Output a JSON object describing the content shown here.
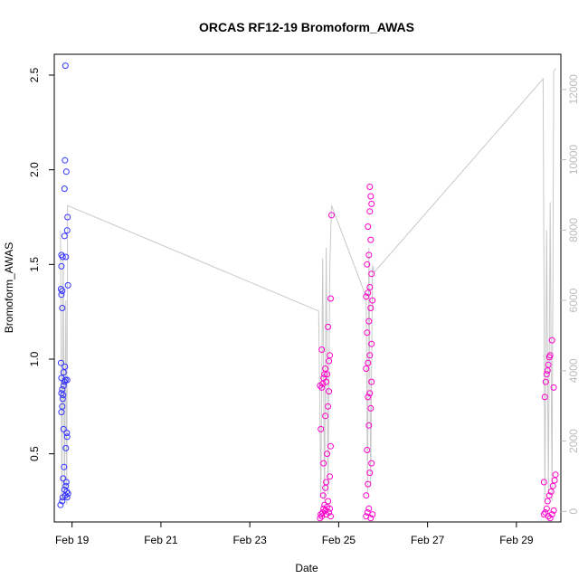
{
  "chart_data": {
    "type": "scatter",
    "title": "ORCAS RF12-19 Bromoform_AWAS",
    "xlabel": "Date",
    "ylabel": "Bromoform_AWAS",
    "x_ticks": [
      "Feb 19",
      "Feb 21",
      "Feb 23",
      "Feb 25",
      "Feb 27",
      "Feb 29"
    ],
    "y_ticks": [
      "0.5",
      "1.0",
      "1.5",
      "2.0",
      "2.5"
    ],
    "y2_ticks": [
      "0",
      "2000",
      "4000",
      "6000",
      "8000",
      "10000",
      "12000"
    ],
    "xlim_days": [
      18.6,
      30.0
    ],
    "ylim": [
      0.14,
      2.61
    ],
    "y2lim": [
      -300,
      13000
    ],
    "grid": false,
    "colors": {
      "early": "#3333ff",
      "late": "#ff00cc",
      "altitude": "#c8c8c8",
      "axis": "#000000",
      "axis2": "#bbbbbb"
    },
    "series": [
      {
        "color": "early",
        "points": [
          [
            18.74,
            0.23
          ],
          [
            18.78,
            0.25
          ],
          [
            18.79,
            0.27
          ],
          [
            18.8,
            0.37
          ],
          [
            18.82,
            0.43
          ],
          [
            18.83,
            0.31
          ],
          [
            18.85,
            0.28
          ],
          [
            18.86,
            0.33
          ],
          [
            18.87,
            0.35
          ],
          [
            18.88,
            0.3
          ],
          [
            18.89,
            0.27
          ],
          [
            18.91,
            0.29
          ],
          [
            18.81,
            0.63
          ],
          [
            18.86,
            0.53
          ],
          [
            18.88,
            0.61
          ],
          [
            18.89,
            0.59
          ],
          [
            18.76,
            0.72
          ],
          [
            18.78,
            0.75
          ],
          [
            18.79,
            0.79
          ],
          [
            18.8,
            0.81
          ],
          [
            18.76,
            0.82
          ],
          [
            18.78,
            0.84
          ],
          [
            18.81,
            0.86
          ],
          [
            18.83,
            0.88
          ],
          [
            18.85,
            0.89
          ],
          [
            18.89,
            0.89
          ],
          [
            18.76,
            0.9
          ],
          [
            18.81,
            0.93
          ],
          [
            18.84,
            0.96
          ],
          [
            18.75,
            0.98
          ],
          [
            18.78,
            1.27
          ],
          [
            18.76,
            1.34
          ],
          [
            18.78,
            1.36
          ],
          [
            18.75,
            1.37
          ],
          [
            18.91,
            1.39
          ],
          [
            18.76,
            1.49
          ],
          [
            18.79,
            1.54
          ],
          [
            18.86,
            1.54
          ],
          [
            18.76,
            1.55
          ],
          [
            18.83,
            1.65
          ],
          [
            18.89,
            1.68
          ],
          [
            18.9,
            1.75
          ],
          [
            18.83,
            1.9
          ],
          [
            18.87,
            1.99
          ],
          [
            18.84,
            2.05
          ],
          [
            18.85,
            2.55
          ]
        ]
      },
      {
        "color": "late",
        "points": [
          [
            24.58,
            0.16
          ],
          [
            24.6,
            0.18
          ],
          [
            24.62,
            0.17
          ],
          [
            24.64,
            0.19
          ],
          [
            24.66,
            0.21
          ],
          [
            24.68,
            0.23
          ],
          [
            24.7,
            0.2
          ],
          [
            24.72,
            0.18
          ],
          [
            24.74,
            0.22
          ],
          [
            24.76,
            0.25
          ],
          [
            24.78,
            0.19
          ],
          [
            24.8,
            0.21
          ],
          [
            24.82,
            0.17
          ],
          [
            24.65,
            0.28
          ],
          [
            24.7,
            0.32
          ],
          [
            24.72,
            0.35
          ],
          [
            24.8,
            0.38
          ],
          [
            24.66,
            0.45
          ],
          [
            24.74,
            0.5
          ],
          [
            24.82,
            0.54
          ],
          [
            24.6,
            0.63
          ],
          [
            24.7,
            0.7
          ],
          [
            24.76,
            0.75
          ],
          [
            24.62,
            0.85
          ],
          [
            24.64,
            0.87
          ],
          [
            24.66,
            0.9
          ],
          [
            24.68,
            0.92
          ],
          [
            24.7,
            0.95
          ],
          [
            24.72,
            0.88
          ],
          [
            24.74,
            0.92
          ],
          [
            24.78,
            0.99
          ],
          [
            24.8,
            1.02
          ],
          [
            24.62,
            1.05
          ],
          [
            24.76,
            1.17
          ],
          [
            24.78,
            0.83
          ],
          [
            24.82,
            1.32
          ],
          [
            24.84,
            1.76
          ],
          [
            24.58,
            0.86
          ],
          [
            25.62,
            0.17
          ],
          [
            25.65,
            0.19
          ],
          [
            25.68,
            0.21
          ],
          [
            25.72,
            0.16
          ],
          [
            25.76,
            0.18
          ],
          [
            25.62,
            0.28
          ],
          [
            25.66,
            0.34
          ],
          [
            25.7,
            0.4
          ],
          [
            25.74,
            0.45
          ],
          [
            25.64,
            0.52
          ],
          [
            25.68,
            0.65
          ],
          [
            25.72,
            0.74
          ],
          [
            25.66,
            0.8
          ],
          [
            25.7,
            0.82
          ],
          [
            25.74,
            0.88
          ],
          [
            25.62,
            0.95
          ],
          [
            25.66,
            0.98
          ],
          [
            25.7,
            1.02
          ],
          [
            25.74,
            1.08
          ],
          [
            25.64,
            1.14
          ],
          [
            25.68,
            1.2
          ],
          [
            25.72,
            1.27
          ],
          [
            25.76,
            1.31
          ],
          [
            25.62,
            1.33
          ],
          [
            25.66,
            1.35
          ],
          [
            25.7,
            1.38
          ],
          [
            25.74,
            1.45
          ],
          [
            25.64,
            1.5
          ],
          [
            25.68,
            1.55
          ],
          [
            25.72,
            1.63
          ],
          [
            25.66,
            1.7
          ],
          [
            25.7,
            1.78
          ],
          [
            25.74,
            1.82
          ],
          [
            25.72,
            1.86
          ],
          [
            25.7,
            1.91
          ],
          [
            29.62,
            0.18
          ],
          [
            29.65,
            0.19
          ],
          [
            29.68,
            0.21
          ],
          [
            29.72,
            0.17
          ],
          [
            29.76,
            0.16
          ],
          [
            29.8,
            0.18
          ],
          [
            29.84,
            0.2
          ],
          [
            29.7,
            0.25
          ],
          [
            29.74,
            0.28
          ],
          [
            29.78,
            0.3
          ],
          [
            29.82,
            0.33
          ],
          [
            29.86,
            0.36
          ],
          [
            29.64,
            0.8
          ],
          [
            29.68,
            0.92
          ],
          [
            29.72,
            0.97
          ],
          [
            29.76,
            1.02
          ],
          [
            29.8,
            1.1
          ],
          [
            29.66,
            0.88
          ],
          [
            29.7,
            0.94
          ],
          [
            29.74,
            1.01
          ],
          [
            29.84,
            0.85
          ],
          [
            29.62,
            0.35
          ],
          [
            29.88,
            0.39
          ]
        ]
      }
    ],
    "altitude": [
      [
        18.74,
        8000
      ],
      [
        18.77,
        300
      ],
      [
        18.8,
        7200
      ],
      [
        18.83,
        500
      ],
      [
        18.86,
        6000
      ],
      [
        18.88,
        200
      ],
      [
        18.9,
        8700
      ],
      [
        24.55,
        5700
      ],
      [
        24.6,
        400
      ],
      [
        24.64,
        7200
      ],
      [
        24.68,
        300
      ],
      [
        24.72,
        7500
      ],
      [
        24.76,
        500
      ],
      [
        24.8,
        7000
      ],
      [
        24.84,
        8700
      ],
      [
        25.62,
        6100
      ],
      [
        25.65,
        500
      ],
      [
        25.68,
        7500
      ],
      [
        25.72,
        800
      ],
      [
        25.76,
        7000
      ],
      [
        25.8,
        6800
      ],
      [
        29.6,
        12300
      ],
      [
        29.64,
        300
      ],
      [
        29.68,
        8000
      ],
      [
        29.72,
        500
      ],
      [
        29.76,
        8800
      ],
      [
        29.8,
        300
      ],
      [
        29.84,
        12500
      ],
      [
        29.88,
        12600
      ]
    ]
  }
}
